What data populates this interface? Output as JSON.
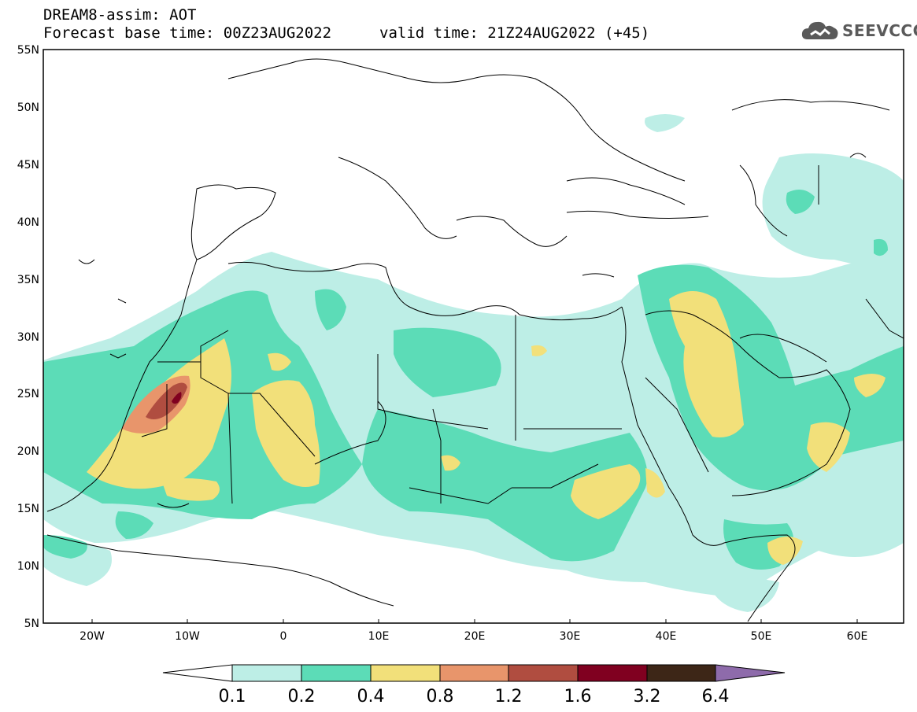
{
  "header": {
    "title_line1": "DREAM8-assim: AOT",
    "title_line2": "Forecast base time: 00Z23AUG2022",
    "valid_time": "valid time: 21Z24AUG2022 (+45)"
  },
  "logo": {
    "text": "SEEVCCC",
    "icon": "cloud-icon"
  },
  "map": {
    "projection": "lat-lon",
    "lon_range": [
      -25,
      65
    ],
    "lat_range": [
      5,
      55
    ],
    "lat_ticks": [
      "5N",
      "10N",
      "15N",
      "20N",
      "25N",
      "30N",
      "35N",
      "40N",
      "45N",
      "50N",
      "55N"
    ],
    "lon_ticks": [
      "20W",
      "10W",
      "0",
      "10E",
      "20E",
      "30E",
      "40E",
      "50E",
      "60E"
    ]
  },
  "colorbar": {
    "labels": [
      "0.1",
      "0.2",
      "0.4",
      "0.8",
      "1.2",
      "1.6",
      "3.2",
      "6.4"
    ],
    "colors": [
      "#ffffff",
      "#bdeee6",
      "#5cdcb7",
      "#f2e07a",
      "#e8956b",
      "#b04d40",
      "#800020",
      "#3d2617",
      "#8e6bab"
    ]
  }
}
